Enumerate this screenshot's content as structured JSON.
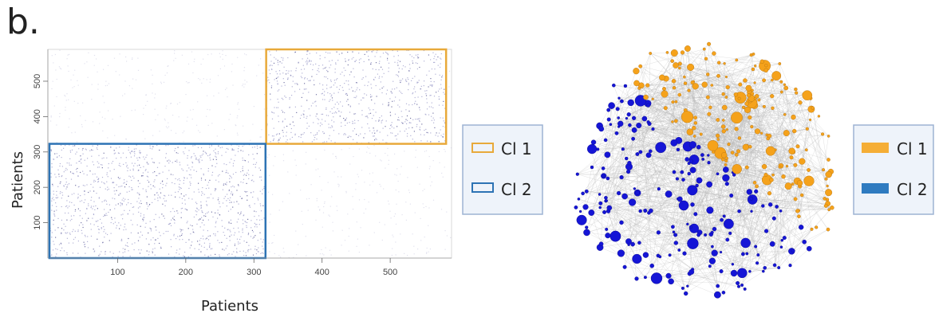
{
  "panel_label": "b.",
  "chart_data": [
    {
      "type": "heatmap",
      "xlabel": "Patients",
      "ylabel": "Patients",
      "xlim": [
        0,
        590
      ],
      "ylim": [
        0,
        590
      ],
      "x_ticks": [
        100,
        200,
        300,
        400,
        500
      ],
      "y_ticks": [
        100,
        200,
        300,
        400,
        500
      ],
      "clusters": [
        {
          "name": "Cl 1",
          "x_range": [
            318,
            582
          ],
          "y_range": [
            323,
            590
          ],
          "color": "#e8a93a"
        },
        {
          "name": "Cl 2",
          "x_range": [
            0,
            317
          ],
          "y_range": [
            0,
            323
          ],
          "color": "#2d73b4"
        }
      ],
      "legend": {
        "position": "right",
        "entries": [
          {
            "label": "Cl 1",
            "color": "#e8a93a",
            "style": "outline"
          },
          {
            "label": "Cl 2",
            "color": "#2d73b4",
            "style": "outline"
          }
        ]
      }
    },
    {
      "type": "network",
      "node_colors": {
        "Cl 1": "#f5a21b",
        "Cl 2": "#1515d6"
      },
      "edge_color": "#b8b8b8",
      "legend": {
        "position": "right",
        "entries": [
          {
            "label": "Cl 1",
            "color": "#f5ae36",
            "style": "filled"
          },
          {
            "label": "Cl 2",
            "color": "#2f7bc0",
            "style": "filled"
          }
        ]
      }
    }
  ]
}
